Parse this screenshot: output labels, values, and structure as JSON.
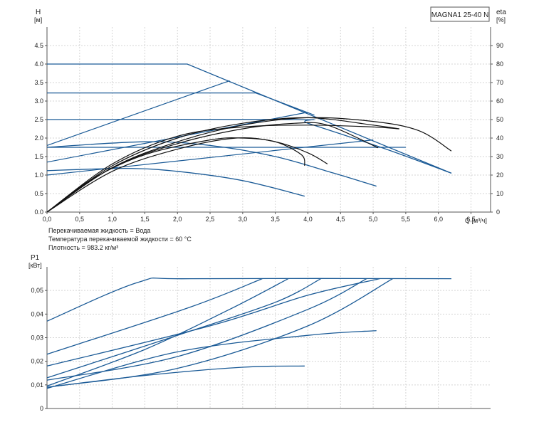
{
  "model_label": "MAGNA1 25-40 N",
  "colors": {
    "blue": "#1a5a96",
    "black": "#111111",
    "grid": "#d5d5d5",
    "frame": "#555555"
  },
  "chart_data": [
    {
      "type": "line",
      "id": "head",
      "ylabel_line1": "H",
      "ylabel_line2": "[м]",
      "y2label_line1": "eta",
      "y2label_line2": "[%]",
      "xlabel": "Q [м³/ч]",
      "xlim": [
        0,
        6.8
      ],
      "ylim": [
        0,
        5
      ],
      "y2lim": [
        0,
        100
      ],
      "x_ticks": [
        "0.0",
        "0.5",
        "1.0",
        "1.5",
        "2.0",
        "2.5",
        "3.0",
        "3.5",
        "4.0",
        "4.5",
        "5.0",
        "5.5",
        "6.0",
        "6.5"
      ],
      "y_ticks": [
        "0.0",
        "0.5",
        "1.0",
        "1.5",
        "2.0",
        "2.5",
        "3.0",
        "3.5",
        "4.0",
        "4.5"
      ],
      "y2_ticks": [
        "0",
        "10",
        "20",
        "30",
        "40",
        "50",
        "60",
        "70",
        "80",
        "90"
      ],
      "grid": true,
      "notes": [
        "Перекачиваемая жидкость = Вода",
        "Температура перекачиваемой жидкости = 60 °C",
        "Плотность = 983.2 кг/м³"
      ],
      "head_curves": [
        {
          "points": [
            [
              0,
              4.0
            ],
            [
              2.15,
              4.0
            ],
            [
              6.2,
              1.05
            ]
          ]
        },
        {
          "points": [
            [
              0,
              3.22
            ],
            [
              3.2,
              3.22
            ],
            [
              4.1,
              2.62
            ]
          ]
        },
        {
          "points": [
            [
              0,
              2.5
            ],
            [
              3.8,
              2.5
            ],
            [
              4.0,
              2.4
            ],
            [
              5.2,
              1.7
            ],
            [
              6.2,
              1.05
            ]
          ]
        },
        {
          "points": [
            [
              0,
              1.75
            ],
            [
              4.0,
              1.75
            ],
            [
              5.5,
              1.75
            ]
          ]
        },
        {
          "points": [
            [
              0,
              1.75
            ],
            [
              1.5,
              1.9
            ],
            [
              2.5,
              1.8
            ],
            [
              3.5,
              1.5
            ],
            [
              4.4,
              1.05
            ],
            [
              5.05,
              0.7
            ]
          ]
        },
        {
          "points": [
            [
              0,
              1.12
            ],
            [
              1.2,
              1.18
            ],
            [
              2.0,
              1.1
            ],
            [
              3.0,
              0.85
            ],
            [
              3.95,
              0.43
            ]
          ]
        }
      ],
      "control_lines": [
        {
          "points": [
            [
              0,
              1.8
            ],
            [
              2.8,
              3.55
            ]
          ]
        },
        {
          "points": [
            [
              0,
              1.35
            ],
            [
              4.0,
              2.7
            ]
          ]
        },
        {
          "points": [
            [
              0,
              1.0
            ],
            [
              5.0,
              1.95
            ]
          ]
        }
      ],
      "efficiency_curves": [
        {
          "points": [
            [
              0,
              0
            ],
            [
              1.0,
              24
            ],
            [
              2.0,
              37
            ],
            [
              3.0,
              45
            ],
            [
              3.8,
              48
            ],
            [
              4.3,
              47
            ],
            [
              5.0,
              36
            ],
            [
              5.05,
              35
            ]
          ]
        },
        {
          "points": [
            [
              0,
              0
            ],
            [
              0.7,
              18
            ],
            [
              1.5,
              31
            ],
            [
              2.5,
              39
            ],
            [
              3.0,
              40
            ],
            [
              3.5,
              38
            ],
            [
              3.9,
              31
            ],
            [
              3.95,
              25
            ]
          ]
        },
        {
          "points": [
            [
              0,
              0
            ],
            [
              1.0,
              22
            ],
            [
              2.0,
              34
            ],
            [
              2.9,
              40
            ],
            [
              3.5,
              38
            ],
            [
              4.0,
              32
            ],
            [
              4.3,
              26
            ]
          ]
        },
        {
          "points": [
            [
              0,
              0
            ],
            [
              1.0,
              24
            ],
            [
              2.0,
              38
            ],
            [
              3.0,
              47
            ],
            [
              4.0,
              51
            ],
            [
              5.0,
              49
            ],
            [
              5.7,
              44
            ],
            [
              6.2,
              33
            ]
          ]
        },
        {
          "points": [
            [
              0,
              0
            ],
            [
              1.0,
              25
            ],
            [
              2.0,
              40
            ],
            [
              3.0,
              48
            ],
            [
              4.0,
              51
            ],
            [
              5.0,
              47
            ],
            [
              5.4,
              45
            ]
          ]
        },
        {
          "points": [
            [
              0,
              0
            ],
            [
              1.0,
              26
            ],
            [
              2.0,
              41
            ],
            [
              3.0,
              46
            ],
            [
              4.0,
              47
            ],
            [
              5.0,
              46
            ],
            [
              5.4,
              45
            ]
          ]
        }
      ]
    },
    {
      "type": "line",
      "id": "power",
      "ylabel_line1": "P1",
      "ylabel_line2": "[кВт]",
      "xlim": [
        0,
        6.8
      ],
      "ylim": [
        0,
        0.06
      ],
      "y_ticks": [
        "0",
        "0,01",
        "0,02",
        "0,03",
        "0,04",
        "0,05"
      ],
      "grid": true,
      "series": [
        {
          "points": [
            [
              0,
              0.037
            ],
            [
              1.4,
              0.0535
            ],
            [
              2.2,
              0.055
            ],
            [
              6.2,
              0.055
            ]
          ]
        },
        {
          "points": [
            [
              0,
              0.023
            ],
            [
              2.2,
              0.043
            ],
            [
              3.3,
              0.055
            ]
          ]
        },
        {
          "points": [
            [
              0,
              0.018
            ],
            [
              2.5,
              0.035
            ],
            [
              4.0,
              0.048
            ],
            [
              5.1,
              0.055
            ]
          ]
        },
        {
          "points": [
            [
              0,
              0.013
            ],
            [
              2.0,
              0.031
            ],
            [
              3.5,
              0.045
            ],
            [
              4.2,
              0.055
            ]
          ]
        },
        {
          "points": [
            [
              0,
              0.0095
            ],
            [
              1.5,
              0.025
            ],
            [
              2.8,
              0.042
            ],
            [
              3.7,
              0.055
            ]
          ]
        },
        {
          "points": [
            [
              0,
              0.012
            ],
            [
              2.0,
              0.022
            ],
            [
              4.0,
              0.042
            ],
            [
              4.9,
              0.055
            ]
          ]
        },
        {
          "points": [
            [
              0,
              0.009
            ],
            [
              2.0,
              0.017
            ],
            [
              4.0,
              0.035
            ],
            [
              5.3,
              0.055
            ]
          ]
        },
        {
          "points": [
            [
              0,
              0.0085
            ],
            [
              2.0,
              0.024
            ],
            [
              4.0,
              0.031
            ],
            [
              5.05,
              0.033
            ]
          ]
        },
        {
          "points": [
            [
              0,
              0.009
            ],
            [
              1.5,
              0.014
            ],
            [
              3.0,
              0.0175
            ],
            [
              3.95,
              0.018
            ]
          ]
        }
      ]
    }
  ]
}
